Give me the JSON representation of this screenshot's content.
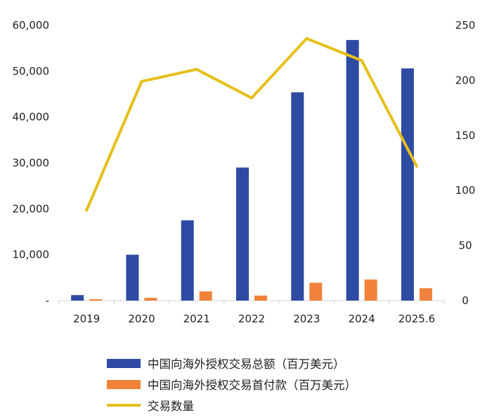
{
  "chart_data": {
    "type": "bar+line",
    "categories": [
      "2019",
      "2020",
      "2021",
      "2022",
      "2023",
      "2024",
      "2025.6"
    ],
    "series": [
      {
        "name": "中国向海外授权交易总额（百万美元）",
        "type": "bar",
        "axis": "left",
        "color": "#2e4aa3",
        "values": [
          1200,
          10000,
          17500,
          29000,
          45400,
          56800,
          50600
        ]
      },
      {
        "name": "中国向海外授权交易首付款（百万美元）",
        "type": "bar",
        "axis": "left",
        "color": "#f0823a",
        "values": [
          300,
          600,
          2000,
          1100,
          3900,
          4600,
          2700
        ]
      },
      {
        "name": "交易数量",
        "type": "line",
        "axis": "right",
        "color": "#e6bf1a",
        "values": [
          82,
          199,
          210,
          184,
          238,
          218,
          122
        ]
      }
    ],
    "left_axis": {
      "ylim": [
        0,
        60000
      ],
      "ticks": [
        {
          "v": 0,
          "label": "-"
        },
        {
          "v": 10000,
          "label": "10,000"
        },
        {
          "v": 20000,
          "label": "20,000"
        },
        {
          "v": 30000,
          "label": "30,000"
        },
        {
          "v": 40000,
          "label": "40,000"
        },
        {
          "v": 50000,
          "label": "50,000"
        },
        {
          "v": 60000,
          "label": "60,000"
        }
      ]
    },
    "right_axis": {
      "ylim": [
        0,
        250
      ],
      "ticks": [
        {
          "v": 0,
          "label": "0"
        },
        {
          "v": 50,
          "label": "50"
        },
        {
          "v": 100,
          "label": "100"
        },
        {
          "v": 150,
          "label": "150"
        },
        {
          "v": 200,
          "label": "200"
        },
        {
          "v": 250,
          "label": "250"
        }
      ]
    },
    "legend_position": "bottom",
    "grid": false
  }
}
